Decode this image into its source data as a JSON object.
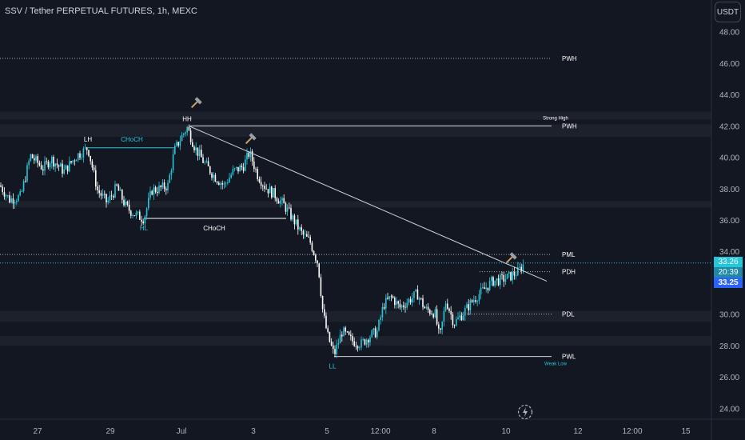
{
  "header": {
    "title": "SSV / Tether PERPETUAL FUTURES, 1h, MEXC",
    "currency_button": "USDT"
  },
  "price_tags": {
    "top": "33.26",
    "countdown": "20:39",
    "last": "33.25"
  },
  "colors": {
    "background": "#131722",
    "candle": "#26c6da",
    "candle_alt": "#ffffff",
    "trendline": "#d1d4dc",
    "zone": "#1e222d",
    "label": "#ffffff",
    "label_accent": "#26c6da",
    "axis_text": "#b2b5be",
    "tag_top": "#26c6da",
    "tag_last": "#2962ff",
    "tag_countdown": "#1e88a8"
  },
  "icons": {
    "drawing_markers": "hammer-icon",
    "replay": "bolt-icon"
  },
  "chart_data": {
    "type": "candlestick",
    "title": "SSV / Tether PERPETUAL FUTURES, 1h, MEXC",
    "xlabel": "",
    "ylabel": "",
    "ylim": [
      23.3,
      48.8
    ],
    "y_ticks": [
      "48.00",
      "46.00",
      "44.00",
      "42.00",
      "40.00",
      "38.00",
      "36.00",
      "34.00",
      "32.00",
      "30.00",
      "28.00",
      "26.00",
      "24.00"
    ],
    "x_ticks": [
      "27",
      "29",
      "Jul",
      "3",
      "5",
      "12:00",
      "8",
      "10",
      "12",
      "12:00",
      "15"
    ],
    "grid": false,
    "price_path": [
      {
        "x": 0,
        "y": 38.2
      },
      {
        "x": 12,
        "y": 37.3
      },
      {
        "x": 26,
        "y": 37.5
      },
      {
        "x": 38,
        "y": 40.1
      },
      {
        "x": 54,
        "y": 39.3
      },
      {
        "x": 64,
        "y": 39.9
      },
      {
        "x": 80,
        "y": 39.1
      },
      {
        "x": 96,
        "y": 40.1
      },
      {
        "x": 110,
        "y": 40.6
      },
      {
        "x": 122,
        "y": 37.9
      },
      {
        "x": 134,
        "y": 37.1
      },
      {
        "x": 146,
        "y": 38.1
      },
      {
        "x": 158,
        "y": 36.8
      },
      {
        "x": 170,
        "y": 36.3
      },
      {
        "x": 180,
        "y": 36.1
      },
      {
        "x": 190,
        "y": 37.9
      },
      {
        "x": 200,
        "y": 38.0
      },
      {
        "x": 210,
        "y": 38.2
      },
      {
        "x": 218,
        "y": 40.4
      },
      {
        "x": 226,
        "y": 41.2
      },
      {
        "x": 234,
        "y": 41.9
      },
      {
        "x": 244,
        "y": 40.6
      },
      {
        "x": 256,
        "y": 39.6
      },
      {
        "x": 268,
        "y": 38.8
      },
      {
        "x": 280,
        "y": 38.2
      },
      {
        "x": 292,
        "y": 39.1
      },
      {
        "x": 304,
        "y": 39.4
      },
      {
        "x": 312,
        "y": 40.3
      },
      {
        "x": 322,
        "y": 38.9
      },
      {
        "x": 332,
        "y": 38.1
      },
      {
        "x": 344,
        "y": 37.6
      },
      {
        "x": 356,
        "y": 36.9
      },
      {
        "x": 366,
        "y": 36.1
      },
      {
        "x": 378,
        "y": 35.1
      },
      {
        "x": 388,
        "y": 34.6
      },
      {
        "x": 398,
        "y": 33.2
      },
      {
        "x": 404,
        "y": 30.1
      },
      {
        "x": 410,
        "y": 28.6
      },
      {
        "x": 418,
        "y": 27.4
      },
      {
        "x": 428,
        "y": 28.9
      },
      {
        "x": 440,
        "y": 28.3
      },
      {
        "x": 452,
        "y": 28.1
      },
      {
        "x": 462,
        "y": 28.6
      },
      {
        "x": 472,
        "y": 28.9
      },
      {
        "x": 480,
        "y": 30.6
      },
      {
        "x": 490,
        "y": 31.1
      },
      {
        "x": 500,
        "y": 30.4
      },
      {
        "x": 512,
        "y": 30.9
      },
      {
        "x": 522,
        "y": 31.3
      },
      {
        "x": 532,
        "y": 30.3
      },
      {
        "x": 544,
        "y": 30.1
      },
      {
        "x": 550,
        "y": 28.4
      },
      {
        "x": 558,
        "y": 30.9
      },
      {
        "x": 568,
        "y": 29.4
      },
      {
        "x": 580,
        "y": 30.1
      },
      {
        "x": 592,
        "y": 30.9
      },
      {
        "x": 604,
        "y": 31.5
      },
      {
        "x": 616,
        "y": 32.1
      },
      {
        "x": 628,
        "y": 32.2
      },
      {
        "x": 638,
        "y": 32.4
      },
      {
        "x": 648,
        "y": 32.7
      },
      {
        "x": 656,
        "y": 33.25
      }
    ],
    "levels": [
      {
        "name": "PWH",
        "value": 46.3,
        "style": "dotted"
      },
      {
        "name": "PWH",
        "value": 42.0,
        "style": "solid"
      },
      {
        "name": "PML",
        "value": 33.8,
        "style": "dotted"
      },
      {
        "name": "PDH",
        "value": 32.7,
        "style": "dotted"
      },
      {
        "name": "PDL",
        "value": 30.0,
        "style": "dotted"
      },
      {
        "name": "PWL",
        "value": 27.3,
        "style": "solid"
      }
    ],
    "annotations": [
      {
        "text": "LH",
        "x": 110,
        "y": 40.6
      },
      {
        "text": "CHoCH",
        "x": 165,
        "y": 40.6,
        "accent": true
      },
      {
        "text": "HH",
        "x": 234,
        "y": 41.9
      },
      {
        "text": "HL",
        "x": 180,
        "y": 36.1,
        "accent": true
      },
      {
        "text": "CHoCH",
        "x": 268,
        "y": 36.1
      },
      {
        "text": "LL",
        "x": 416,
        "y": 27.3,
        "accent": true
      },
      {
        "text": "Strong High",
        "x": 695,
        "y": 42.0
      },
      {
        "text": "Weak Low",
        "x": 695,
        "y": 27.3,
        "accent": true
      }
    ],
    "trendline": {
      "from": {
        "x": 236,
        "y": 42.0
      },
      "to": {
        "x": 684,
        "y": 32.1
      }
    }
  }
}
